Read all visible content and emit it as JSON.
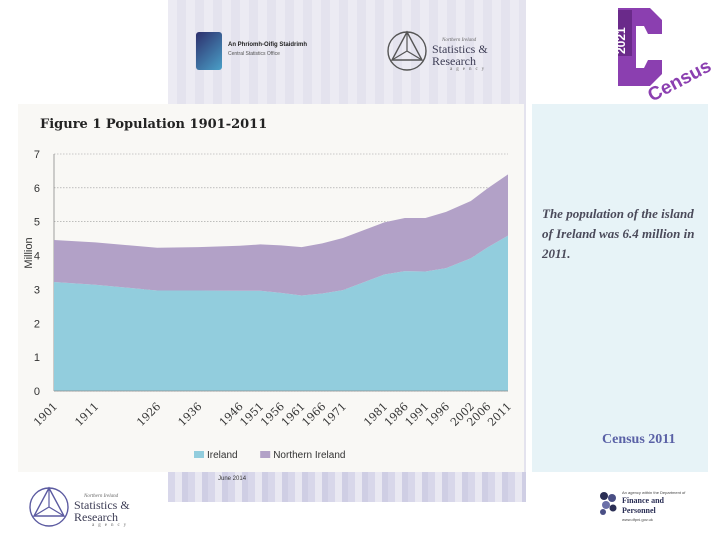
{
  "header": {
    "small_logo_line1": "An Phríomh-Oifig Staidrimh",
    "small_logo_line2": "Central Statistics Office"
  },
  "nisra_logo": {
    "line0": "Northern Ireland",
    "line1": "Statistics &",
    "line2": "Research",
    "line3": "agency"
  },
  "census_logo": {
    "year": "2021",
    "word": "Census",
    "color": "#8b3fb0"
  },
  "chart_data": {
    "type": "area",
    "title": "Figure 1 Population 1901-2011",
    "ylabel": "Million",
    "xlabel": "",
    "ylim": [
      0,
      7
    ],
    "yticks": [
      0,
      1,
      2,
      3,
      4,
      5,
      6,
      7
    ],
    "grid": true,
    "stacked": true,
    "x": [
      1901,
      1911,
      1926,
      1936,
      1946,
      1951,
      1956,
      1961,
      1966,
      1971,
      1981,
      1986,
      1991,
      1996,
      2002,
      2006,
      2011
    ],
    "categories": [
      "1901",
      "1911",
      "1926",
      "1936",
      "1946",
      "1951",
      "1956",
      "1961",
      "1966",
      "1971",
      "1981",
      "1986",
      "1991",
      "1996",
      "2002",
      "2006",
      "2011"
    ],
    "series": [
      {
        "name": "Ireland",
        "color": "#92cddd",
        "values": [
          3.22,
          3.14,
          2.97,
          2.97,
          2.96,
          2.96,
          2.9,
          2.82,
          2.88,
          2.98,
          3.44,
          3.54,
          3.53,
          3.63,
          3.92,
          4.24,
          4.59
        ]
      },
      {
        "name": "Northern Ireland",
        "color": "#b2a1c7",
        "values": [
          1.24,
          1.25,
          1.26,
          1.28,
          1.33,
          1.37,
          1.4,
          1.43,
          1.48,
          1.54,
          1.54,
          1.57,
          1.58,
          1.66,
          1.69,
          1.74,
          1.81
        ]
      }
    ],
    "legend_position": "bottom"
  },
  "side_panel": {
    "text": "The population of the island of Ireland was 6.4 million in 2011.",
    "footer": "Census 2011"
  },
  "footer": {
    "date": "June 2014",
    "dfp_line0": "An agency within the Department of",
    "dfp_line1": "Finance and",
    "dfp_line2": "Personnel",
    "dfp_line3": "www.dfpni.gov.uk"
  }
}
